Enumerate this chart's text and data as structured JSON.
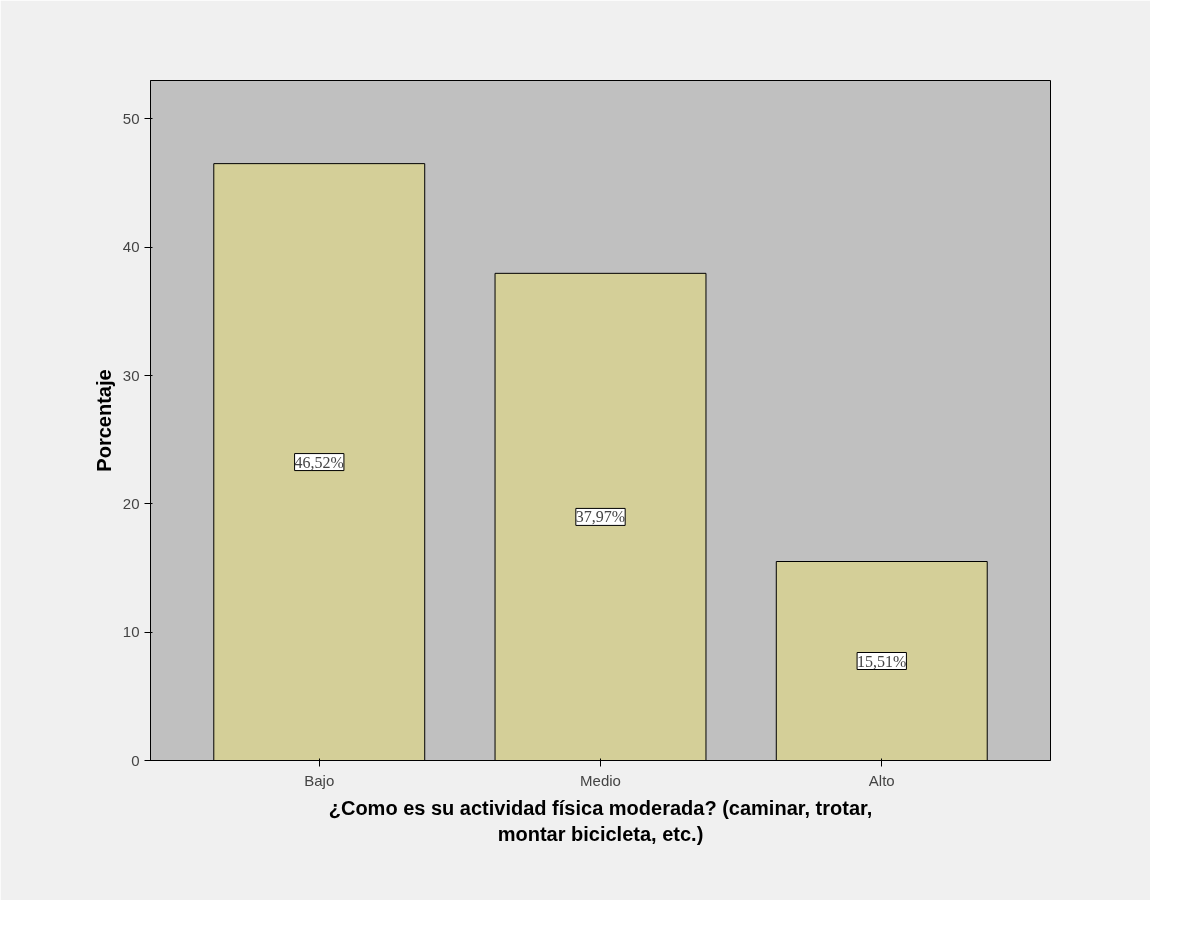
{
  "chart_data": {
    "type": "bar",
    "xlabel": "¿Como es su actividad física moderada? (caminar, trotar, montar bicicleta, etc.)",
    "ylabel": "Porcentaje",
    "categories": [
      "Bajo",
      "Medio",
      "Alto"
    ],
    "values": [
      46.52,
      37.97,
      15.51
    ],
    "value_labels": [
      "46,52%",
      "37,97%",
      "15,51%"
    ],
    "color": "#d4cf98",
    "ylim": [
      0,
      53
    ],
    "yticks": [
      0,
      10,
      20,
      30,
      40,
      50
    ],
    "grid": false
  }
}
